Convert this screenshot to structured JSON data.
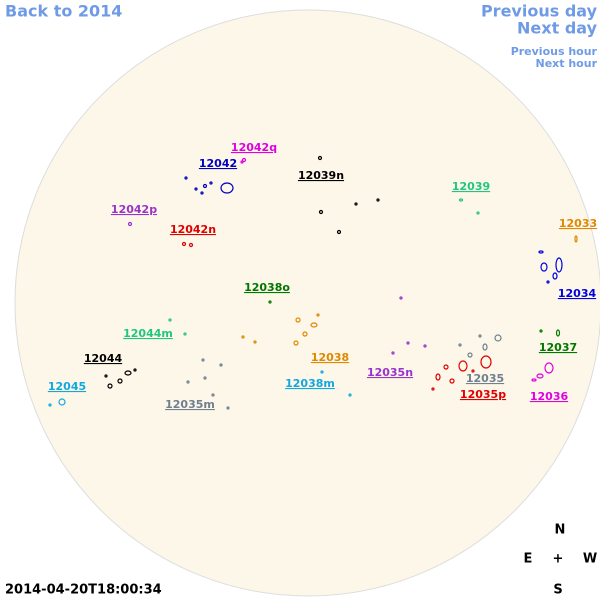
{
  "navigation": {
    "back": "Back to 2014",
    "previous_day": "Previous day",
    "next_day": "Next day",
    "previous_hour": "Previous hour",
    "next_hour": "Next hour"
  },
  "regions": [
    {
      "label": "12042q",
      "color": "#e000e0"
    },
    {
      "label": "12042",
      "color": "#0000c0"
    },
    {
      "label": "12039n",
      "color": "#000000"
    },
    {
      "label": "12039",
      "color": "#22c77f"
    },
    {
      "label": "12042p",
      "color": "#9933cc"
    },
    {
      "label": "12042n",
      "color": "#e00000"
    },
    {
      "label": "12033",
      "color": "#e08800"
    },
    {
      "label": "12034",
      "color": "#0000e0"
    },
    {
      "label": "12038o",
      "color": "#007700"
    },
    {
      "label": "12044m",
      "color": "#22c77f"
    },
    {
      "label": "12044",
      "color": "#000000"
    },
    {
      "label": "12038",
      "color": "#e08800"
    },
    {
      "label": "12037",
      "color": "#007700"
    },
    {
      "label": "12045",
      "color": "#11a8e0"
    },
    {
      "label": "12038m",
      "color": "#11a8e0"
    },
    {
      "label": "12035n",
      "color": "#9933cc"
    },
    {
      "label": "12035",
      "color": "#708090"
    },
    {
      "label": "12035p",
      "color": "#e00000"
    },
    {
      "label": "12036",
      "color": "#e000e0"
    },
    {
      "label": "12035m",
      "color": "#708090"
    }
  ],
  "timestamp": "2014-04-20T18:00:34",
  "compass": {
    "north": "N",
    "east": "E",
    "center": "+",
    "west": "W",
    "south": "S"
  }
}
